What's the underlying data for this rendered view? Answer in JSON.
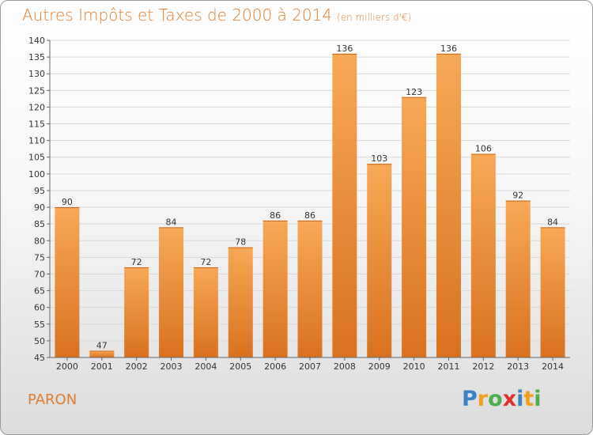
{
  "title": "Autres Impôts et Taxes de 2000 à 2014",
  "subtitle": "(en milliers d'€)",
  "place": "PARON",
  "logo": {
    "letters": [
      "P",
      "r",
      "o",
      "x",
      "i",
      "t",
      "i"
    ],
    "colors": [
      "#3b82c4",
      "#f0a020",
      "#4cae4c",
      "#e0302a",
      "#3b82c4",
      "#f0a020",
      "#4cae4c"
    ]
  },
  "chart_data": {
    "type": "bar",
    "title": "Autres Impôts et Taxes de 2000 à 2014",
    "subtitle": "(en milliers d'€)",
    "categories": [
      "2000",
      "2001",
      "2002",
      "2003",
      "2004",
      "2005",
      "2006",
      "2007",
      "2008",
      "2009",
      "2010",
      "2011",
      "2012",
      "2013",
      "2014"
    ],
    "values": [
      90,
      47,
      72,
      84,
      72,
      78,
      86,
      86,
      136,
      103,
      123,
      136,
      106,
      92,
      84
    ],
    "ylim": [
      45,
      140
    ],
    "yticks": [
      45,
      50,
      55,
      60,
      65,
      70,
      75,
      80,
      85,
      90,
      95,
      100,
      105,
      110,
      115,
      120,
      125,
      130,
      135,
      140
    ],
    "grid": true,
    "bar_color": "#f0943a"
  }
}
